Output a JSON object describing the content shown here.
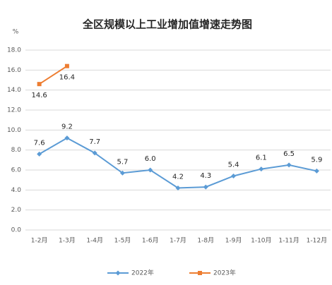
{
  "chart_data": {
    "type": "line",
    "title": "全区规模以上工业增加值增速走势图",
    "y_label": "%",
    "categories": [
      "1-2月",
      "1-3月",
      "1-4月",
      "1-5月",
      "1-6月",
      "1-7月",
      "1-8月",
      "1-9月",
      "1-10月",
      "1-11月",
      "1-12月"
    ],
    "series": [
      {
        "name": "2022年",
        "color": "#5b9bd5",
        "marker": "diamond",
        "values": [
          7.6,
          9.2,
          7.7,
          5.7,
          6.0,
          4.2,
          4.3,
          5.4,
          6.1,
          6.5,
          5.9
        ],
        "value_labels": [
          "7.6",
          "9.2",
          "7.7",
          "5.7",
          "6.0",
          "4.2",
          "4.3",
          "5.4",
          "6.1",
          "6.5",
          "5.9"
        ]
      },
      {
        "name": "2023年",
        "color": "#ed7d31",
        "marker": "square",
        "values": [
          14.6,
          16.4,
          null,
          null,
          null,
          null,
          null,
          null,
          null,
          null,
          null
        ],
        "value_labels": [
          "14.6",
          "16.4",
          null,
          null,
          null,
          null,
          null,
          null,
          null,
          null,
          null
        ]
      }
    ],
    "ylim": [
      0,
      18
    ],
    "yticks": [
      {
        "value": 0,
        "label": "0.0"
      },
      {
        "value": 2,
        "label": "2.0"
      },
      {
        "value": 4,
        "label": "4.0"
      },
      {
        "value": 6,
        "label": "6.0"
      },
      {
        "value": 8,
        "label": "8.0"
      },
      {
        "value": 10,
        "label": "10.0"
      },
      {
        "value": 12,
        "label": "12.0"
      },
      {
        "value": 14,
        "label": "14.0"
      },
      {
        "value": 16,
        "label": "16.0"
      },
      {
        "value": 18,
        "label": "18.0"
      }
    ],
    "grid": true,
    "legend": "bottom"
  }
}
